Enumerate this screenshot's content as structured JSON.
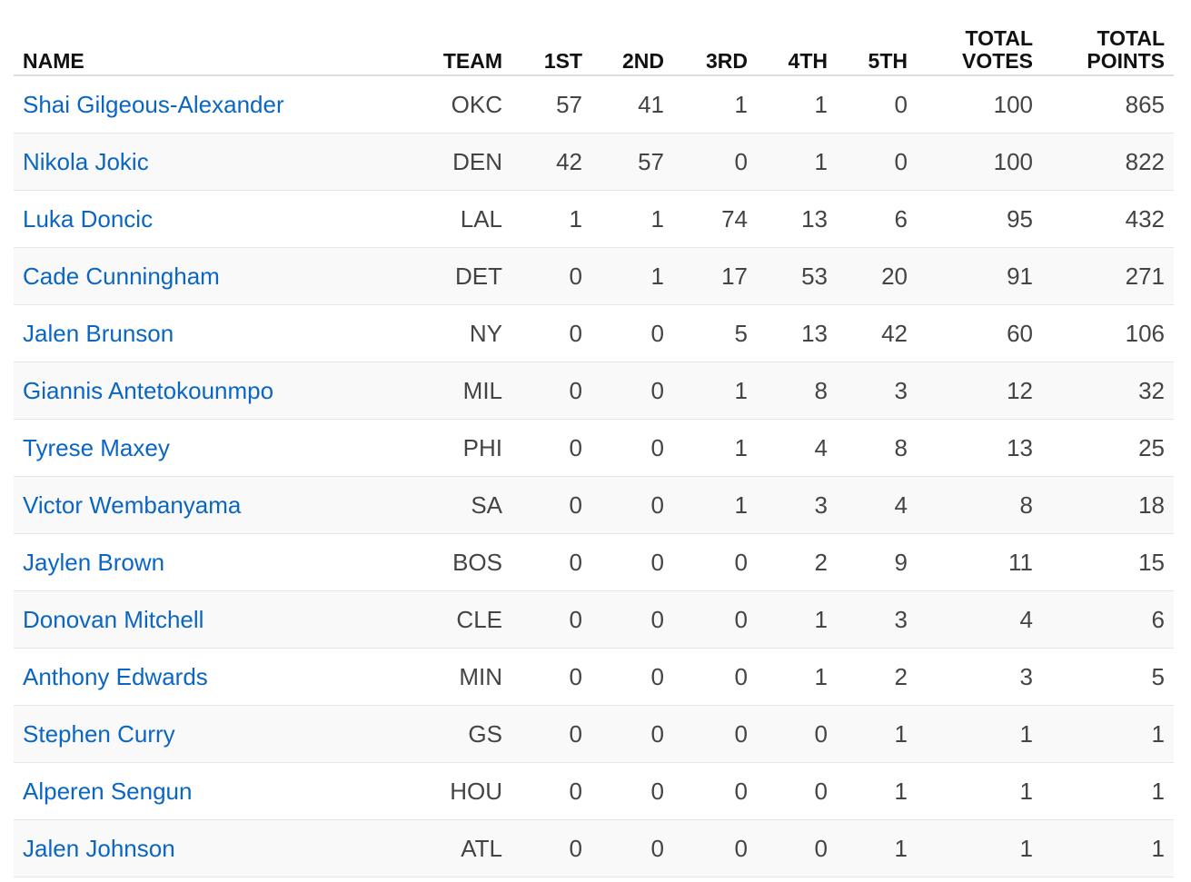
{
  "table": {
    "headers": {
      "name": "NAME",
      "team": "TEAM",
      "first": "1ST",
      "second": "2ND",
      "third": "3RD",
      "fourth": "4TH",
      "fifth": "5TH",
      "total_votes_line1": "TOTAL",
      "total_votes_line2": "VOTES",
      "total_points_line1": "TOTAL",
      "total_points_line2": "POINTS"
    },
    "rows": [
      {
        "name": "Shai Gilgeous-Alexander",
        "team": "OKC",
        "first": "57",
        "second": "41",
        "third": "1",
        "fourth": "1",
        "fifth": "0",
        "total_votes": "100",
        "total_points": "865"
      },
      {
        "name": "Nikola Jokic",
        "team": "DEN",
        "first": "42",
        "second": "57",
        "third": "0",
        "fourth": "1",
        "fifth": "0",
        "total_votes": "100",
        "total_points": "822"
      },
      {
        "name": "Luka Doncic",
        "team": "LAL",
        "first": "1",
        "second": "1",
        "third": "74",
        "fourth": "13",
        "fifth": "6",
        "total_votes": "95",
        "total_points": "432"
      },
      {
        "name": "Cade Cunningham",
        "team": "DET",
        "first": "0",
        "second": "1",
        "third": "17",
        "fourth": "53",
        "fifth": "20",
        "total_votes": "91",
        "total_points": "271"
      },
      {
        "name": "Jalen Brunson",
        "team": "NY",
        "first": "0",
        "second": "0",
        "third": "5",
        "fourth": "13",
        "fifth": "42",
        "total_votes": "60",
        "total_points": "106"
      },
      {
        "name": "Giannis Antetokounmpo",
        "team": "MIL",
        "first": "0",
        "second": "0",
        "third": "1",
        "fourth": "8",
        "fifth": "3",
        "total_votes": "12",
        "total_points": "32"
      },
      {
        "name": "Tyrese Maxey",
        "team": "PHI",
        "first": "0",
        "second": "0",
        "third": "1",
        "fourth": "4",
        "fifth": "8",
        "total_votes": "13",
        "total_points": "25"
      },
      {
        "name": "Victor Wembanyama",
        "team": "SA",
        "first": "0",
        "second": "0",
        "third": "1",
        "fourth": "3",
        "fifth": "4",
        "total_votes": "8",
        "total_points": "18"
      },
      {
        "name": "Jaylen Brown",
        "team": "BOS",
        "first": "0",
        "second": "0",
        "third": "0",
        "fourth": "2",
        "fifth": "9",
        "total_votes": "11",
        "total_points": "15"
      },
      {
        "name": "Donovan Mitchell",
        "team": "CLE",
        "first": "0",
        "second": "0",
        "third": "0",
        "fourth": "1",
        "fifth": "3",
        "total_votes": "4",
        "total_points": "6"
      },
      {
        "name": "Anthony Edwards",
        "team": "MIN",
        "first": "0",
        "second": "0",
        "third": "0",
        "fourth": "1",
        "fifth": "2",
        "total_votes": "3",
        "total_points": "5"
      },
      {
        "name": "Stephen Curry",
        "team": "GS",
        "first": "0",
        "second": "0",
        "third": "0",
        "fourth": "0",
        "fifth": "1",
        "total_votes": "1",
        "total_points": "1"
      },
      {
        "name": "Alperen Sengun",
        "team": "HOU",
        "first": "0",
        "second": "0",
        "third": "0",
        "fourth": "0",
        "fifth": "1",
        "total_votes": "1",
        "total_points": "1"
      },
      {
        "name": "Jalen Johnson",
        "team": "ATL",
        "first": "0",
        "second": "0",
        "third": "0",
        "fourth": "0",
        "fifth": "1",
        "total_votes": "1",
        "total_points": "1"
      }
    ]
  },
  "colors": {
    "link": "#0b66c3",
    "header_text": "#111111",
    "cell_text": "#444444",
    "stripe": "#f9f9f9",
    "header_rule": "#dddddd"
  }
}
